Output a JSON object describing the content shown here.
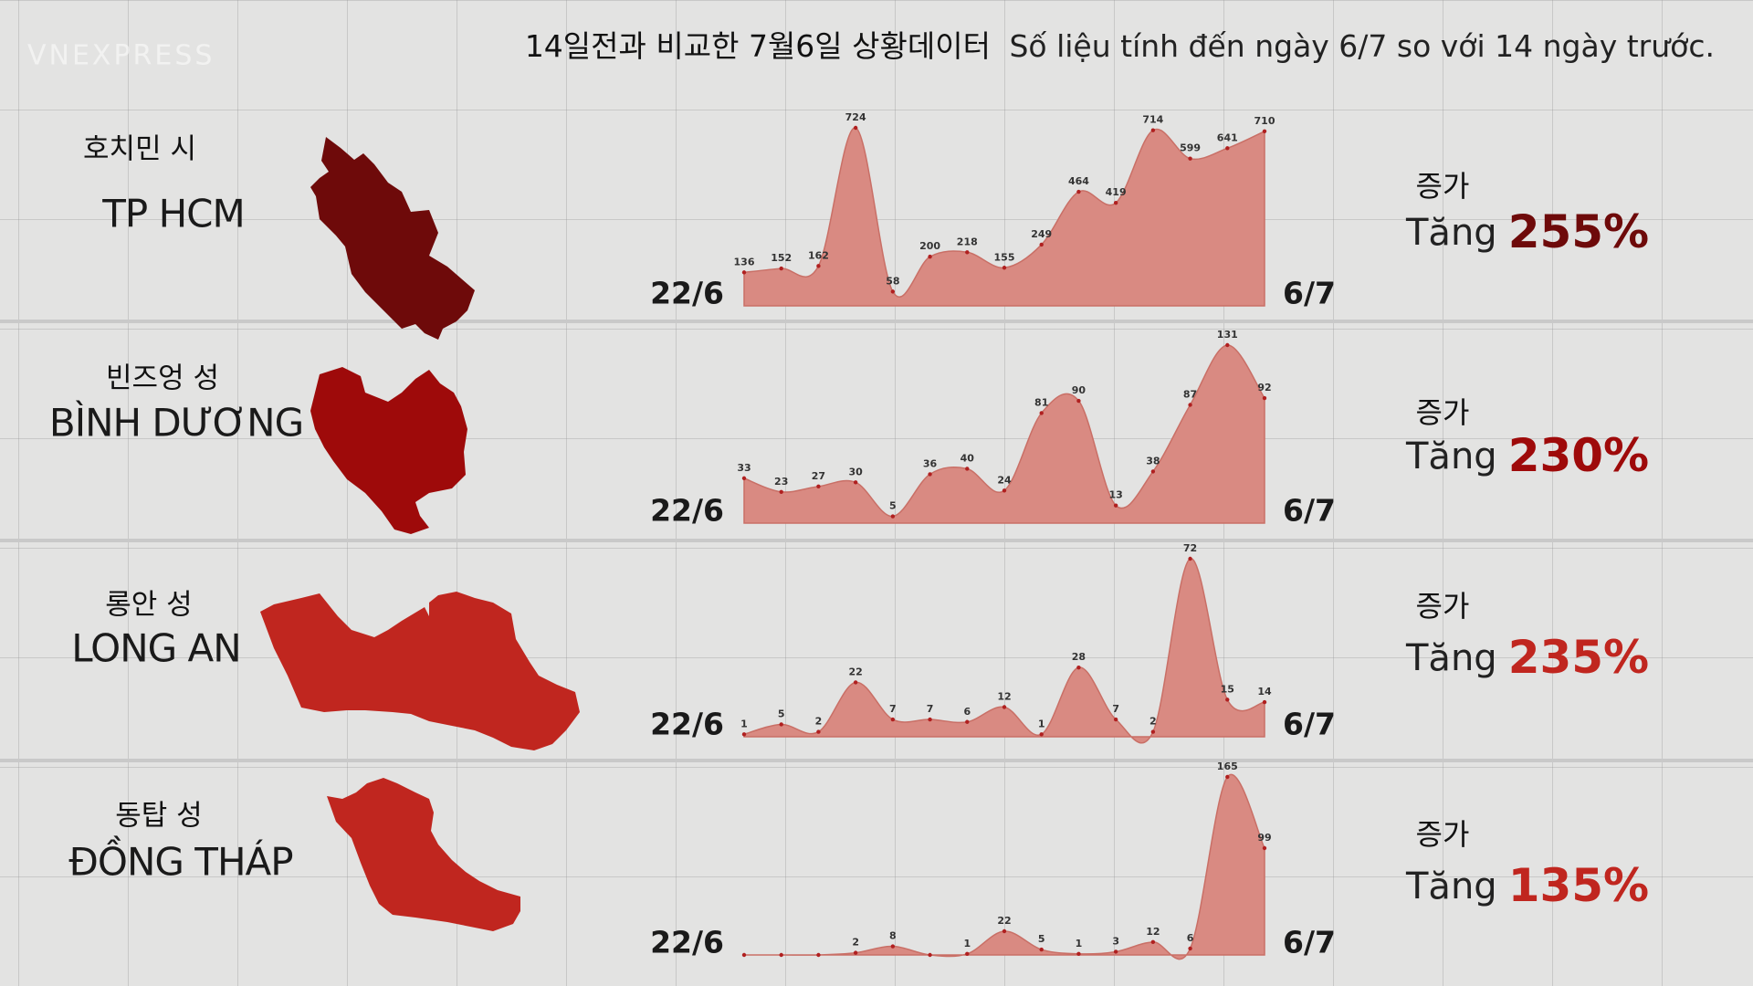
{
  "header": {
    "watermark": "VNEXPRESS",
    "title_ko": "14일전과 비교한 7월6일 상황데이터",
    "title_vi": "Số liệu tính đến ngày 6/7 so với 14 ngày trước."
  },
  "chart_data": [
    {
      "type": "area",
      "title": "호치민 시",
      "subtitle": "TP HCM",
      "color": "#d98a82",
      "region_color": "#6e0a0a",
      "categories": [
        "22/6",
        null,
        null,
        null,
        null,
        null,
        null,
        null,
        null,
        null,
        null,
        null,
        null,
        null,
        "6/7"
      ],
      "values": [
        136,
        152,
        162,
        724,
        58,
        200,
        218,
        155,
        249,
        464,
        419,
        714,
        599,
        641,
        710
      ],
      "annotation_ko": "증가",
      "annotation": "Tăng",
      "increase": "255%"
    },
    {
      "type": "area",
      "title": "빈즈엉 성",
      "subtitle": "BÌNH DƯƠNG",
      "color": "#d98a82",
      "region_color": "#9e0a0a",
      "categories": [
        "22/6",
        null,
        null,
        null,
        null,
        null,
        null,
        null,
        null,
        null,
        null,
        null,
        null,
        null,
        "6/7"
      ],
      "values": [
        33,
        23,
        27,
        30,
        5,
        36,
        40,
        24,
        81,
        90,
        13,
        38,
        87,
        131,
        92
      ],
      "annotation_ko": "증가",
      "annotation": "Tăng",
      "increase": "230%"
    },
    {
      "type": "area",
      "title": "롱안 성",
      "subtitle": "LONG AN",
      "color": "#d98a82",
      "region_color": "#c0261f",
      "categories": [
        "22/6",
        null,
        null,
        null,
        null,
        null,
        null,
        null,
        null,
        null,
        null,
        null,
        null,
        null,
        "6/7"
      ],
      "values": [
        1,
        5,
        2,
        22,
        7,
        7,
        6,
        12,
        1,
        28,
        7,
        2,
        72,
        15,
        14
      ],
      "annotation_ko": "증가",
      "annotation": "Tăng",
      "increase": "235%"
    },
    {
      "type": "area",
      "title": "동탑 성",
      "subtitle": "ĐỒNG THÁP",
      "color": "#d98a82",
      "region_color": "#c0261f",
      "categories": [
        "22/6",
        null,
        null,
        null,
        null,
        null,
        null,
        null,
        null,
        null,
        null,
        null,
        null,
        null,
        "6/7"
      ],
      "values": [
        0,
        0,
        0,
        2,
        8,
        0,
        1,
        22,
        5,
        1,
        3,
        12,
        6,
        165,
        99
      ],
      "value_labels": [
        null,
        null,
        null,
        "2",
        "8",
        null,
        "1",
        "22",
        "5",
        "1",
        "3",
        "12",
        "6",
        "165",
        "99"
      ],
      "annotation_ko": "증가",
      "annotation": "Tăng",
      "increase": "135%"
    }
  ]
}
